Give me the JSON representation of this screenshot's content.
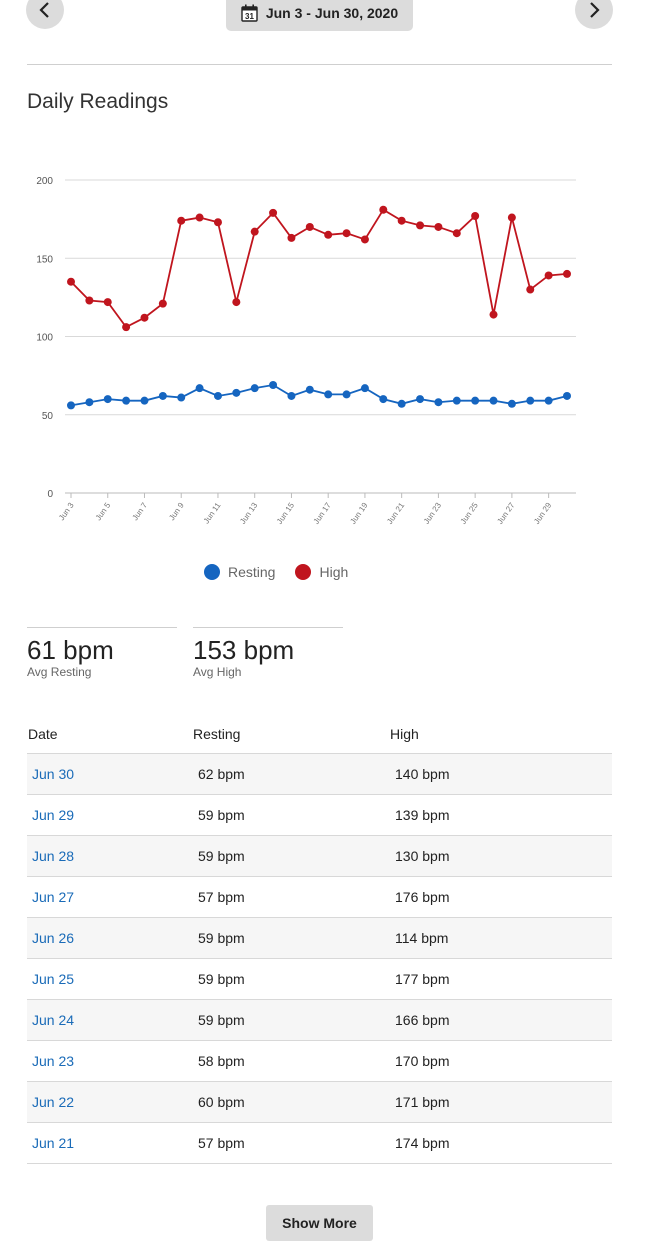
{
  "header": {
    "date_range": "Jun 3 - Jun 30, 2020",
    "prev_icon": "chevron-left-icon",
    "next_icon": "chevron-right-icon",
    "calendar_icon": "calendar-icon",
    "calendar_day": "31"
  },
  "section_title": "Daily Readings",
  "chart_data": {
    "type": "line",
    "x": [
      "Jun 3",
      "Jun 4",
      "Jun 5",
      "Jun 6",
      "Jun 7",
      "Jun 8",
      "Jun 9",
      "Jun 10",
      "Jun 11",
      "Jun 12",
      "Jun 13",
      "Jun 14",
      "Jun 15",
      "Jun 16",
      "Jun 17",
      "Jun 18",
      "Jun 19",
      "Jun 20",
      "Jun 21",
      "Jun 22",
      "Jun 23",
      "Jun 24",
      "Jun 25",
      "Jun 26",
      "Jun 27",
      "Jun 28",
      "Jun 29",
      "Jun 30"
    ],
    "tick_labels": [
      "Jun 3",
      "Jun 5",
      "Jun 7",
      "Jun 9",
      "Jun 11",
      "Jun 13",
      "Jun 15",
      "Jun 17",
      "Jun 19",
      "Jun 21",
      "Jun 23",
      "Jun 25",
      "Jun 27",
      "Jun 29"
    ],
    "ylim": [
      0,
      200
    ],
    "yticks": [
      0,
      50,
      100,
      150,
      200
    ],
    "grid": true,
    "legend_position": "bottom",
    "series": [
      {
        "name": "Resting",
        "color": "#1565c0",
        "values": [
          56,
          58,
          60,
          59,
          59,
          62,
          61,
          67,
          62,
          64,
          67,
          69,
          62,
          66,
          63,
          63,
          67,
          60,
          57,
          60,
          58,
          59,
          59,
          59,
          57,
          59,
          59,
          62
        ]
      },
      {
        "name": "High",
        "color": "#c0151e",
        "values": [
          135,
          123,
          122,
          106,
          112,
          121,
          174,
          176,
          173,
          122,
          167,
          179,
          163,
          170,
          165,
          166,
          162,
          181,
          174,
          171,
          170,
          166,
          177,
          114,
          176,
          130,
          139,
          140
        ]
      }
    ]
  },
  "legend": {
    "resting": "Resting",
    "high": "High"
  },
  "stats": {
    "resting_value": "61 bpm",
    "resting_label": "Avg Resting",
    "high_value": "153 bpm",
    "high_label": "Avg High"
  },
  "table": {
    "headers": {
      "date": "Date",
      "resting": "Resting",
      "high": "High"
    },
    "rows": [
      {
        "date": "Jun 30",
        "resting": "62 bpm",
        "high": "140 bpm"
      },
      {
        "date": "Jun 29",
        "resting": "59 bpm",
        "high": "139 bpm"
      },
      {
        "date": "Jun 28",
        "resting": "59 bpm",
        "high": "130 bpm"
      },
      {
        "date": "Jun 27",
        "resting": "57 bpm",
        "high": "176 bpm"
      },
      {
        "date": "Jun 26",
        "resting": "59 bpm",
        "high": "114 bpm"
      },
      {
        "date": "Jun 25",
        "resting": "59 bpm",
        "high": "177 bpm"
      },
      {
        "date": "Jun 24",
        "resting": "59 bpm",
        "high": "166 bpm"
      },
      {
        "date": "Jun 23",
        "resting": "58 bpm",
        "high": "170 bpm"
      },
      {
        "date": "Jun 22",
        "resting": "60 bpm",
        "high": "171 bpm"
      },
      {
        "date": "Jun 21",
        "resting": "57 bpm",
        "high": "174 bpm"
      }
    ]
  },
  "show_more_label": "Show More"
}
